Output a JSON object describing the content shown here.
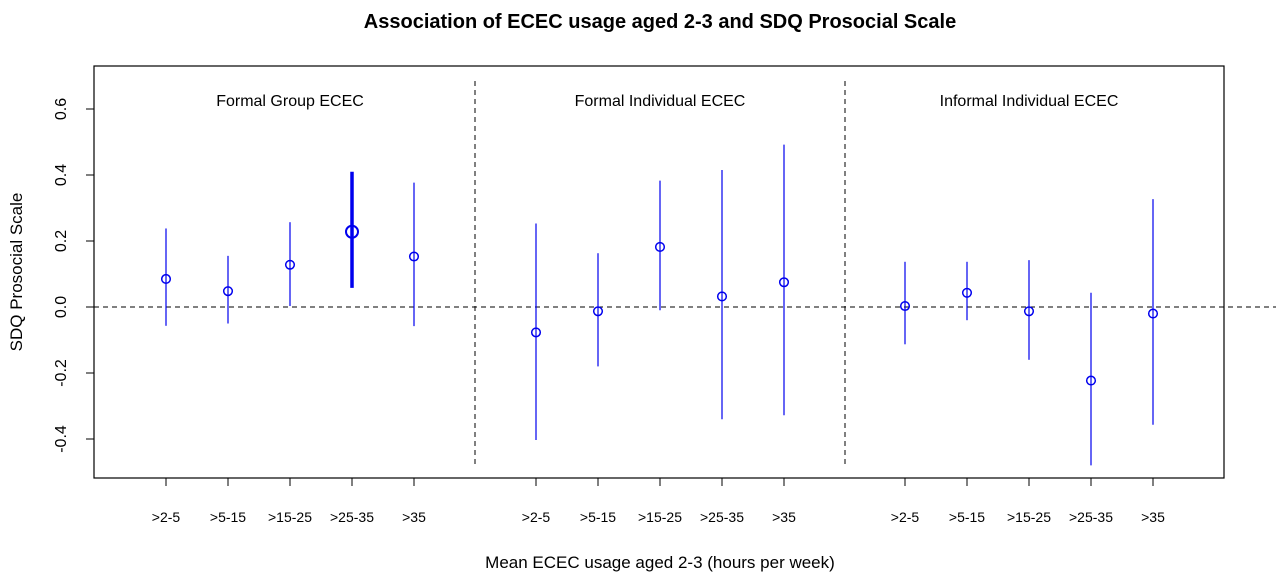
{
  "chart_data": {
    "type": "scatter",
    "title": "Association of ECEC usage aged 2-3 and SDQ Prosocial Scale",
    "xlabel": "Mean ECEC usage aged 2-3 (hours per week)",
    "ylabel": "SDQ Prosocial Scale",
    "ylim": [
      -0.51,
      0.73
    ],
    "yticks": [
      "-0.4",
      "-0.2",
      "0.0",
      "0.2",
      "0.4",
      "0.6"
    ],
    "reference_line": 0.0,
    "grid": false,
    "color": "#0000ee",
    "categories": [
      ">2-5",
      ">5-15",
      ">15-25",
      ">25-35",
      ">35"
    ],
    "panels": [
      {
        "name": "Formal Group ECEC",
        "estimates": [
          0.085,
          0.048,
          0.128,
          0.228,
          0.153
        ],
        "lower": [
          -0.057,
          -0.05,
          0.003,
          0.058,
          -0.058
        ],
        "upper": [
          0.238,
          0.155,
          0.257,
          0.41,
          0.377
        ],
        "highlight": [
          false,
          false,
          false,
          true,
          false
        ]
      },
      {
        "name": "Formal Individual ECEC",
        "estimates": [
          -0.077,
          -0.013,
          0.182,
          0.032,
          0.075
        ],
        "lower": [
          -0.403,
          -0.18,
          -0.01,
          -0.34,
          -0.328
        ],
        "upper": [
          0.253,
          0.163,
          0.383,
          0.415,
          0.492
        ],
        "highlight": [
          false,
          false,
          false,
          false,
          false
        ]
      },
      {
        "name": "Informal Individual ECEC",
        "estimates": [
          0.003,
          0.043,
          -0.013,
          -0.223,
          -0.02
        ],
        "lower": [
          -0.113,
          -0.04,
          -0.16,
          -0.48,
          -0.357
        ],
        "upper": [
          0.137,
          0.137,
          0.142,
          0.043,
          0.327
        ],
        "highlight": [
          false,
          false,
          false,
          false,
          false
        ]
      }
    ]
  }
}
